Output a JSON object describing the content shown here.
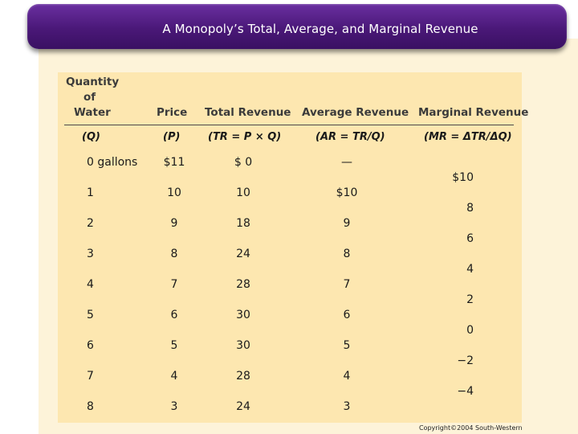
{
  "title": "A Monopoly’s Total, Average,  and Marginal Revenue",
  "table": {
    "headers": {
      "quantity_line1": "Quantity",
      "quantity_line2": "of",
      "quantity_line3": "Water",
      "price": "Price",
      "total_revenue": "Total Revenue",
      "average_revenue": "Average Revenue",
      "marginal_revenue": "Marginal Revenue"
    },
    "subheaders": {
      "quantity": "(Q)",
      "price": "(P)",
      "total_revenue": "(TR = P × Q)",
      "average_revenue": "(AR = TR/Q)",
      "marginal_revenue": "(MR = ΔTR/ΔQ)"
    },
    "rows": [
      {
        "q": "0 gallons",
        "p": "$11",
        "tr": "$ 0",
        "ar": "—"
      },
      {
        "q": "1",
        "p": "10",
        "tr": "10",
        "ar": "$10"
      },
      {
        "q": "2",
        "p": "9",
        "tr": "18",
        "ar": "9"
      },
      {
        "q": "3",
        "p": "8",
        "tr": "24",
        "ar": "8"
      },
      {
        "q": "4",
        "p": "7",
        "tr": "28",
        "ar": "7"
      },
      {
        "q": "5",
        "p": "6",
        "tr": "30",
        "ar": "6"
      },
      {
        "q": "6",
        "p": "5",
        "tr": "30",
        "ar": "5"
      },
      {
        "q": "7",
        "p": "4",
        "tr": "28",
        "ar": "4"
      },
      {
        "q": "8",
        "p": "3",
        "tr": "24",
        "ar": "3"
      }
    ],
    "marginal": [
      "$10",
      "8",
      "6",
      "4",
      "2",
      "0",
      "−2",
      "−4"
    ]
  },
  "copyright": "Copyright©2004 South-Western",
  "colors": {
    "title_bar": "#4a1878",
    "panel": "#fde7b0",
    "page_band": "#fdf3d9"
  }
}
